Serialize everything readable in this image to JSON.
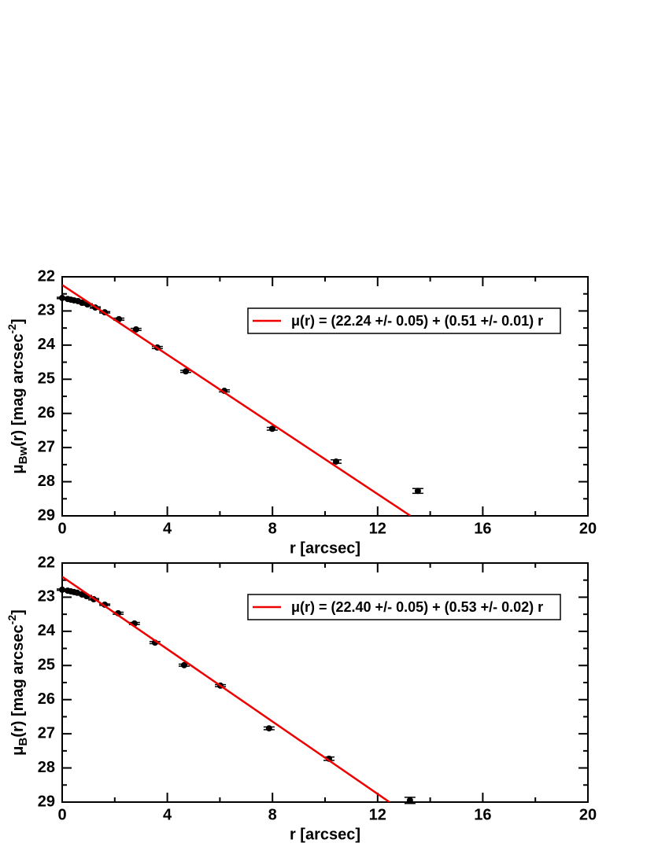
{
  "chart_data": [
    {
      "type": "scatter",
      "xlabel": "r [arcsec]",
      "ylabel_parts": [
        "μ",
        "Bw",
        "(r) [mag arcsec",
        "-2",
        "]"
      ],
      "xlim": [
        0,
        20
      ],
      "ylim": [
        22,
        29
      ],
      "y_inverted": true,
      "xticks": [
        0,
        4,
        8,
        12,
        16,
        20
      ],
      "xminorticks": [
        2,
        6,
        10,
        14,
        18
      ],
      "yticks": [
        22,
        23,
        24,
        25,
        26,
        27,
        28,
        29
      ],
      "yminorticks": [
        22.5,
        23.5,
        24.5,
        25.5,
        26.5,
        27.5,
        28.5
      ],
      "legend": "upper right",
      "series": [
        {
          "type": "scatter",
          "color": "#000000",
          "x": [
            0,
            0.21,
            0.33,
            0.45,
            0.6,
            0.75,
            0.96,
            1.26,
            1.62,
            2.16,
            2.81,
            3.62,
            4.7,
            6.17,
            7.99,
            10.42,
            13.53
          ],
          "values": [
            22.62,
            22.65,
            22.67,
            22.69,
            22.71,
            22.76,
            22.81,
            22.9,
            23.04,
            23.24,
            23.54,
            24.07,
            24.77,
            25.34,
            26.45,
            27.41,
            28.27
          ],
          "errors": [
            0.02,
            0.02,
            0.02,
            0.02,
            0.02,
            0.02,
            0.02,
            0.02,
            0.02,
            0.03,
            0.03,
            0.03,
            0.03,
            0.03,
            0.04,
            0.05,
            0.07
          ]
        },
        {
          "type": "line",
          "name": "μ(r) = (22.24 +/- 0.05) + (0.51 +/- 0.01) r",
          "color": "#ee0000",
          "x": [
            0,
            13.25
          ],
          "values": [
            22.24,
            29
          ]
        }
      ]
    },
    {
      "type": "scatter",
      "xlabel": "r [arcsec]",
      "ylabel_parts": [
        "μ",
        "B",
        "(r) [mag arcsec",
        "-2",
        "]"
      ],
      "xlim": [
        0,
        20
      ],
      "ylim": [
        22,
        29
      ],
      "y_inverted": true,
      "xticks": [
        0,
        4,
        8,
        12,
        16,
        20
      ],
      "xminorticks": [
        2,
        6,
        10,
        14,
        18
      ],
      "yticks": [
        22,
        23,
        24,
        25,
        26,
        27,
        28,
        29
      ],
      "yminorticks": [
        22.5,
        23.5,
        24.5,
        25.5,
        26.5,
        27.5,
        28.5
      ],
      "legend": "upper right",
      "series": [
        {
          "type": "scatter",
          "color": "#000000",
          "x": [
            0,
            0.21,
            0.33,
            0.45,
            0.57,
            0.75,
            0.93,
            1.2,
            1.62,
            2.13,
            2.75,
            3.53,
            4.64,
            6.02,
            7.87,
            10.15,
            13.23
          ],
          "values": [
            22.78,
            22.81,
            22.83,
            22.85,
            22.87,
            22.92,
            22.97,
            23.06,
            23.22,
            23.47,
            23.77,
            24.33,
            24.99,
            25.59,
            26.84,
            27.73,
            28.95
          ],
          "errors": [
            0.02,
            0.02,
            0.02,
            0.02,
            0.02,
            0.02,
            0.02,
            0.02,
            0.02,
            0.03,
            0.03,
            0.03,
            0.03,
            0.03,
            0.04,
            0.05,
            0.09
          ]
        },
        {
          "type": "line",
          "name": "μ(r) = (22.40 +/- 0.05) + (0.53 +/- 0.02) r",
          "color": "#ee0000",
          "x": [
            0,
            12.45
          ],
          "values": [
            22.4,
            29
          ]
        }
      ]
    }
  ]
}
